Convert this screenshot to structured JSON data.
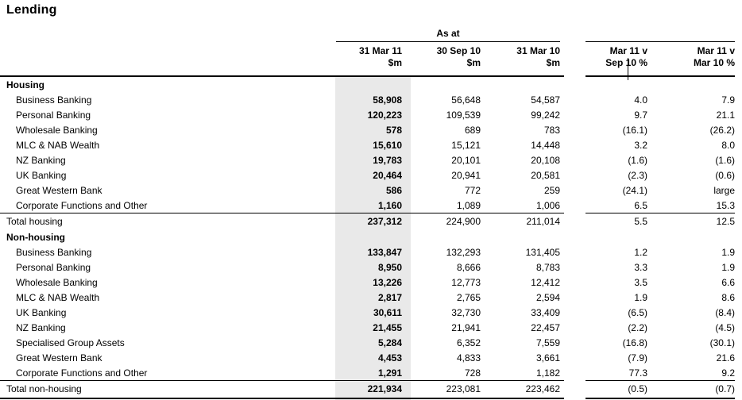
{
  "title": "Lending",
  "colors": {
    "highlight_column_bg": "#e9e9e9",
    "rule_color": "#000000"
  },
  "table": {
    "group_header": "As at",
    "columns": [
      {
        "line1": "31 Mar 11",
        "line2": "$m"
      },
      {
        "line1": "30 Sep 10",
        "line2": "$m"
      },
      {
        "line1": "31 Mar 10",
        "line2": "$m"
      },
      {
        "line1": "Mar 11 v",
        "line2": "Sep 10 %"
      },
      {
        "line1": "Mar 11 v",
        "line2": "Mar 10 %"
      }
    ],
    "rows": [
      {
        "label": "Housing",
        "type": "section",
        "values": [
          "",
          "",
          "",
          "",
          ""
        ]
      },
      {
        "label": "Business Banking",
        "type": "item",
        "values": [
          "58,908",
          "56,648",
          "54,587",
          "4.0",
          "7.9"
        ]
      },
      {
        "label": "Personal Banking",
        "type": "item",
        "values": [
          "120,223",
          "109,539",
          "99,242",
          "9.7",
          "21.1"
        ]
      },
      {
        "label": "Wholesale Banking",
        "type": "item",
        "values": [
          "578",
          "689",
          "783",
          "(16.1)",
          "(26.2)"
        ]
      },
      {
        "label": "MLC & NAB Wealth",
        "type": "item",
        "values": [
          "15,610",
          "15,121",
          "14,448",
          "3.2",
          "8.0"
        ]
      },
      {
        "label": "NZ Banking",
        "type": "item",
        "values": [
          "19,783",
          "20,101",
          "20,108",
          "(1.6)",
          "(1.6)"
        ]
      },
      {
        "label": "UK Banking",
        "type": "item",
        "values": [
          "20,464",
          "20,941",
          "20,581",
          "(2.3)",
          "(0.6)"
        ]
      },
      {
        "label": "Great Western Bank",
        "type": "item",
        "values": [
          "586",
          "772",
          "259",
          "(24.1)",
          "large"
        ]
      },
      {
        "label": "Corporate Functions and Other",
        "type": "item",
        "values": [
          "1,160",
          "1,089",
          "1,006",
          "6.5",
          "15.3"
        ]
      },
      {
        "label": "Total housing",
        "type": "total",
        "values": [
          "237,312",
          "224,900",
          "211,014",
          "5.5",
          "12.5"
        ]
      },
      {
        "label": "Non-housing",
        "type": "section",
        "values": [
          "",
          "",
          "",
          "",
          ""
        ]
      },
      {
        "label": "Business Banking",
        "type": "item",
        "values": [
          "133,847",
          "132,293",
          "131,405",
          "1.2",
          "1.9"
        ]
      },
      {
        "label": "Personal Banking",
        "type": "item",
        "values": [
          "8,950",
          "8,666",
          "8,783",
          "3.3",
          "1.9"
        ]
      },
      {
        "label": "Wholesale Banking",
        "type": "item",
        "values": [
          "13,226",
          "12,773",
          "12,412",
          "3.5",
          "6.6"
        ]
      },
      {
        "label": "MLC & NAB Wealth",
        "type": "item",
        "values": [
          "2,817",
          "2,765",
          "2,594",
          "1.9",
          "8.6"
        ]
      },
      {
        "label": "UK Banking",
        "type": "item",
        "values": [
          "30,611",
          "32,730",
          "33,409",
          "(6.5)",
          "(8.4)"
        ]
      },
      {
        "label": "NZ Banking",
        "type": "item",
        "values": [
          "21,455",
          "21,941",
          "22,457",
          "(2.2)",
          "(4.5)"
        ]
      },
      {
        "label": "Specialised Group Assets",
        "type": "item",
        "values": [
          "5,284",
          "6,352",
          "7,559",
          "(16.8)",
          "(30.1)"
        ]
      },
      {
        "label": "Great Western Bank",
        "type": "item",
        "values": [
          "4,453",
          "4,833",
          "3,661",
          "(7.9)",
          "21.6"
        ]
      },
      {
        "label": "Corporate Functions and Other",
        "type": "item",
        "values": [
          "1,291",
          "728",
          "1,182",
          "77.3",
          "9.2"
        ]
      },
      {
        "label": "Total non-housing",
        "type": "total",
        "values": [
          "221,934",
          "223,081",
          "223,462",
          "(0.5)",
          "(0.7)"
        ]
      }
    ]
  }
}
